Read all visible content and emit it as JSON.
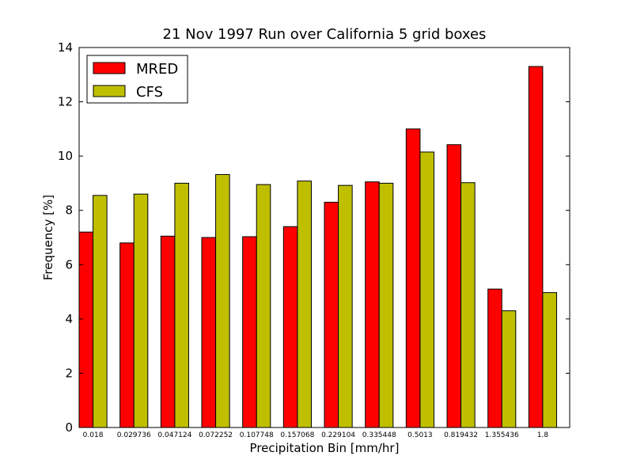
{
  "chart_data": {
    "type": "bar",
    "title": "21 Nov 1997 Run over California 5 grid boxes",
    "xlabel": "Precipitation Bin [mm/hr]",
    "ylabel": "Frequency [%]",
    "ylim": [
      0,
      14
    ],
    "yticks": [
      "0",
      "2",
      "4",
      "6",
      "8",
      "10",
      "12",
      "14"
    ],
    "categories": [
      "0.018",
      "0.029736",
      "0.047124",
      "0.072252",
      "0.107748",
      "0.157068",
      "0.229104",
      "0.335448",
      "0.5013",
      "0.819432",
      "1.355436",
      "1.8"
    ],
    "series": [
      {
        "name": "MRED",
        "color": "#ff0000",
        "values": [
          7.2,
          6.8,
          7.05,
          7.0,
          7.03,
          7.4,
          8.3,
          9.05,
          11.0,
          10.42,
          5.1,
          13.3
        ]
      },
      {
        "name": "CFS",
        "color": "#bfbf00",
        "values": [
          8.55,
          8.6,
          9.0,
          9.32,
          8.95,
          9.08,
          8.92,
          9.0,
          10.15,
          9.02,
          4.3,
          4.97
        ]
      }
    ],
    "legend_position": "top-left",
    "grid": false
  }
}
